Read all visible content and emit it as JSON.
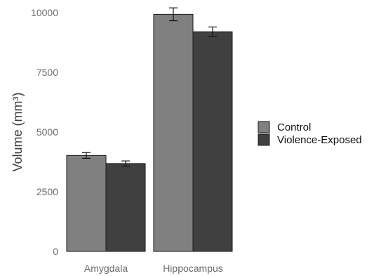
{
  "chart_data": {
    "type": "bar",
    "title": "",
    "xlabel": "",
    "ylabel": "Volume (mm³)",
    "categories": [
      "Amygdala",
      "Hippocampus"
    ],
    "series": [
      {
        "name": "Control",
        "color": "#808080",
        "values": [
          4020,
          9930
        ],
        "errors": [
          120,
          270
        ]
      },
      {
        "name": "Violence-Exposed",
        "color": "#404040",
        "values": [
          3680,
          9200
        ],
        "errors": [
          110,
          200
        ]
      }
    ],
    "ylim": [
      0,
      10000
    ],
    "yticks": [
      0,
      2500,
      5000,
      7500,
      10000
    ],
    "grid": false,
    "legend_position": "right"
  }
}
